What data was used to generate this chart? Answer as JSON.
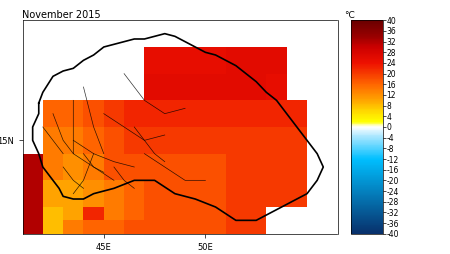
{
  "title": "November 2015",
  "colorbar_label": "°C",
  "vmin": -40,
  "vmax": 40,
  "colorbar_ticks": [
    40,
    36,
    32,
    28,
    24,
    20,
    16,
    12,
    8,
    4,
    0,
    -4,
    -8,
    -12,
    -16,
    -20,
    -24,
    -28,
    -32,
    -36,
    -40
  ],
  "xlim": [
    41.0,
    56.5
  ],
  "ylim": [
    11.5,
    19.5
  ],
  "xticks": [
    45,
    50
  ],
  "xtick_labels": [
    "45E",
    "50E"
  ],
  "yticks": [
    15
  ],
  "ytick_labels": [
    "15N"
  ],
  "background_color": "#ffffff",
  "cell_size": 1.0,
  "temp_data": [
    [
      null,
      null,
      null,
      null,
      null,
      null,
      null,
      null,
      null,
      null,
      null,
      null,
      null,
      null,
      null
    ],
    [
      null,
      null,
      null,
      null,
      null,
      null,
      25,
      25,
      25,
      25,
      26,
      26,
      26,
      null,
      null
    ],
    [
      null,
      null,
      null,
      null,
      null,
      null,
      26,
      26,
      26,
      26,
      26,
      26,
      25,
      null,
      null
    ],
    [
      null,
      16,
      16,
      18,
      20,
      22,
      22,
      22,
      22,
      22,
      22,
      22,
      22,
      22,
      null
    ],
    [
      null,
      14,
      14,
      16,
      18,
      20,
      20,
      20,
      20,
      20,
      20,
      20,
      20,
      20,
      null
    ],
    [
      32,
      14,
      12,
      14,
      18,
      18,
      18,
      18,
      18,
      18,
      20,
      20,
      20,
      20,
      null
    ],
    [
      32,
      10,
      10,
      12,
      14,
      16,
      18,
      18,
      18,
      18,
      20,
      20,
      20,
      20,
      null
    ],
    [
      32,
      8,
      10,
      22,
      14,
      16,
      18,
      18,
      18,
      18,
      20,
      20,
      null,
      null,
      null
    ],
    [
      null,
      8,
      14,
      16,
      16,
      18,
      null,
      null,
      null,
      null,
      null,
      null,
      null,
      null,
      null
    ]
  ],
  "lat_centers": [
    19.0,
    18.0,
    17.0,
    16.0,
    15.0,
    14.0,
    13.0,
    12.0,
    11.5
  ],
  "lon_centers": [
    41.5,
    42.5,
    43.5,
    44.5,
    45.5,
    46.5,
    47.5,
    48.5,
    49.5,
    50.5,
    51.5,
    52.5,
    53.5,
    54.5,
    55.5
  ],
  "yemen_border": [
    [
      41.8,
      16.4
    ],
    [
      42.0,
      16.8
    ],
    [
      42.5,
      17.4
    ],
    [
      43.0,
      17.6
    ],
    [
      43.5,
      17.7
    ],
    [
      44.0,
      18.0
    ],
    [
      44.5,
      18.2
    ],
    [
      45.0,
      18.5
    ],
    [
      45.5,
      18.6
    ],
    [
      46.0,
      18.7
    ],
    [
      46.5,
      18.8
    ],
    [
      47.0,
      18.8
    ],
    [
      47.5,
      18.9
    ],
    [
      48.0,
      19.0
    ],
    [
      48.5,
      18.9
    ],
    [
      49.0,
      18.7
    ],
    [
      49.5,
      18.5
    ],
    [
      50.0,
      18.3
    ],
    [
      50.5,
      18.2
    ],
    [
      51.0,
      18.0
    ],
    [
      51.5,
      17.8
    ],
    [
      52.0,
      17.5
    ],
    [
      52.5,
      17.2
    ],
    [
      53.0,
      16.8
    ],
    [
      53.5,
      16.5
    ],
    [
      54.0,
      16.0
    ],
    [
      54.5,
      15.5
    ],
    [
      55.0,
      15.0
    ],
    [
      55.5,
      14.5
    ],
    [
      55.8,
      14.0
    ],
    [
      55.5,
      13.5
    ],
    [
      55.0,
      13.0
    ],
    [
      54.5,
      12.8
    ],
    [
      54.0,
      12.6
    ],
    [
      53.5,
      12.4
    ],
    [
      53.0,
      12.2
    ],
    [
      52.5,
      12.0
    ],
    [
      51.5,
      12.0
    ],
    [
      50.5,
      12.5
    ],
    [
      49.5,
      12.8
    ],
    [
      48.5,
      13.0
    ],
    [
      47.5,
      13.5
    ],
    [
      46.5,
      13.5
    ],
    [
      45.5,
      13.2
    ],
    [
      44.5,
      13.0
    ],
    [
      44.0,
      12.8
    ],
    [
      43.5,
      12.8
    ],
    [
      43.0,
      12.9
    ],
    [
      42.8,
      13.2
    ],
    [
      42.5,
      13.5
    ],
    [
      42.0,
      14.0
    ],
    [
      41.8,
      14.5
    ],
    [
      41.5,
      15.0
    ],
    [
      41.5,
      15.5
    ],
    [
      41.8,
      16.0
    ],
    [
      41.8,
      16.4
    ]
  ],
  "internal_borders": [
    [
      [
        43.5,
        16.5
      ],
      [
        43.5,
        15.5
      ],
      [
        43.5,
        14.5
      ],
      [
        44.5,
        14.0
      ],
      [
        45.5,
        13.5
      ]
    ],
    [
      [
        44.0,
        17.0
      ],
      [
        44.5,
        15.5
      ],
      [
        45.0,
        14.5
      ]
    ],
    [
      [
        42.5,
        16.0
      ],
      [
        43.0,
        15.0
      ],
      [
        43.5,
        14.5
      ]
    ],
    [
      [
        43.5,
        15.0
      ],
      [
        44.5,
        14.5
      ],
      [
        45.5,
        14.2
      ],
      [
        46.5,
        14.0
      ]
    ],
    [
      [
        45.0,
        16.0
      ],
      [
        46.0,
        15.5
      ],
      [
        47.0,
        15.0
      ],
      [
        48.0,
        15.2
      ]
    ],
    [
      [
        46.0,
        17.5
      ],
      [
        47.0,
        16.5
      ],
      [
        48.0,
        16.0
      ],
      [
        49.0,
        16.2
      ]
    ],
    [
      [
        44.5,
        14.5
      ],
      [
        44.0,
        13.5
      ],
      [
        43.5,
        13.0
      ]
    ],
    [
      [
        45.5,
        14.0
      ],
      [
        46.0,
        13.5
      ],
      [
        46.5,
        13.2
      ]
    ],
    [
      [
        47.0,
        14.5
      ],
      [
        48.0,
        14.0
      ],
      [
        49.0,
        13.5
      ],
      [
        50.0,
        13.5
      ]
    ],
    [
      [
        42.0,
        15.5
      ],
      [
        42.5,
        15.0
      ],
      [
        43.0,
        14.5
      ]
    ],
    [
      [
        43.0,
        14.0
      ],
      [
        43.5,
        13.5
      ],
      [
        44.0,
        13.2
      ]
    ],
    [
      [
        44.0,
        14.5
      ],
      [
        44.5,
        14.0
      ],
      [
        45.0,
        13.8
      ]
    ],
    [
      [
        46.5,
        15.5
      ],
      [
        47.0,
        15.0
      ],
      [
        47.5,
        14.5
      ],
      [
        48.0,
        14.2
      ]
    ]
  ],
  "colormap_nodes": [
    [
      0.0,
      "#08306b"
    ],
    [
      0.35,
      "#00bfff"
    ],
    [
      0.46,
      "#b0e8ff"
    ],
    [
      0.5,
      "#ffffff"
    ],
    [
      0.525,
      "#ffff00"
    ],
    [
      0.575,
      "#ffd700"
    ],
    [
      0.625,
      "#ffa500"
    ],
    [
      0.7,
      "#ff6600"
    ],
    [
      0.8,
      "#ee1100"
    ],
    [
      0.875,
      "#cc0000"
    ],
    [
      0.925,
      "#990000"
    ],
    [
      1.0,
      "#6b0000"
    ]
  ]
}
